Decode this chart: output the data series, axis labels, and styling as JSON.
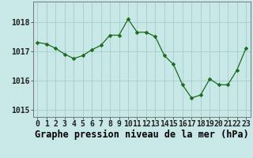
{
  "hours": [
    0,
    1,
    2,
    3,
    4,
    5,
    6,
    7,
    8,
    9,
    10,
    11,
    12,
    13,
    14,
    15,
    16,
    17,
    18,
    19,
    20,
    21,
    22,
    23
  ],
  "pressure": [
    1017.3,
    1017.25,
    1017.1,
    1016.9,
    1016.75,
    1016.85,
    1017.05,
    1017.2,
    1017.55,
    1017.55,
    1018.1,
    1017.65,
    1017.65,
    1017.5,
    1016.85,
    1016.55,
    1015.85,
    1015.4,
    1015.5,
    1016.05,
    1015.85,
    1015.85,
    1016.35,
    1017.1
  ],
  "line_color": "#1a6b1a",
  "marker": "D",
  "marker_size": 2.5,
  "bg_color": "#c8e8e8",
  "grid_color": "#a8cccc",
  "title": "Graphe pression niveau de la mer (hPa)",
  "ylim_min": 1014.75,
  "ylim_max": 1018.7,
  "yticks": [
    1015,
    1016,
    1017,
    1018
  ],
  "title_fontsize": 8.5,
  "tick_fontsize": 7
}
